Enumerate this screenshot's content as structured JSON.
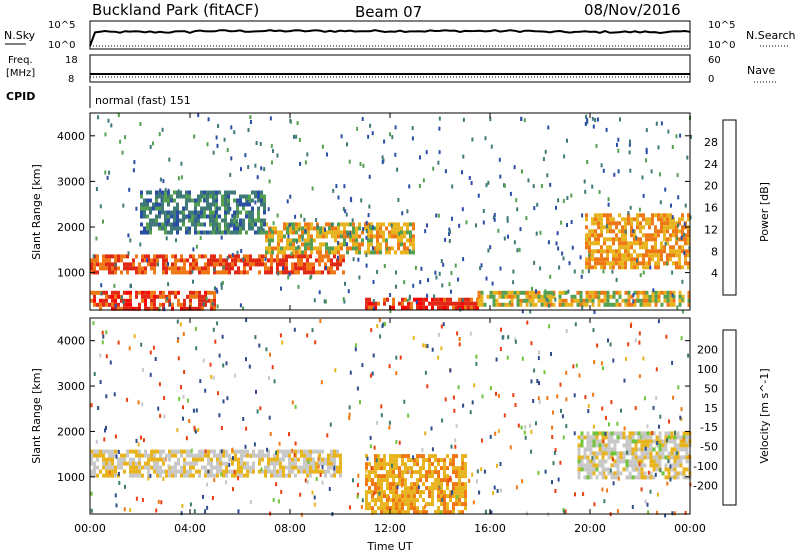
{
  "header": {
    "station": "Buckland Park (fitACF)",
    "beam": "Beam 07",
    "date": "08/Nov/2016"
  },
  "top_panels": {
    "nsky_label": "N.Sky",
    "nsky_scale_high": "10^5",
    "nsky_scale_low": "10^0",
    "nsearch_label": "N.Search",
    "nsearch_scale_high": "10^5",
    "nsearch_scale_low": "10^0",
    "freq_label_line1": "Freq.",
    "freq_label_line2": "[MHz]",
    "freq_high": "18",
    "freq_low": "8",
    "nave_label": "Nave",
    "nave_high": "60",
    "nave_low": "0",
    "cpid_label": "CPID",
    "cpid_value": "normal (fast) 151"
  },
  "axes": {
    "ylabel": "Slant Range [km]",
    "yticks": [
      "1000",
      "2000",
      "3000",
      "4000"
    ],
    "xlabel": "Time UT",
    "xticks": [
      "00:00",
      "04:00",
      "08:00",
      "12:00",
      "16:00",
      "20:00",
      "00:00"
    ]
  },
  "colorbars": {
    "power": {
      "label": "Power [dB]",
      "ticks": [
        "4",
        "8",
        "12",
        "16",
        "20",
        "24",
        "28"
      ],
      "colors": [
        "#0a1ee0",
        "#2a4da6",
        "#3f7a78",
        "#55a050",
        "#e8b41e",
        "#f07814",
        "#e02814",
        "#ff0000"
      ]
    },
    "velocity": {
      "label": "Velocity [m s^-1]",
      "ticks": [
        "200",
        "100",
        "50",
        "15",
        "-15",
        "-50",
        "-100",
        "-200"
      ],
      "colors": [
        "#1a2fa8",
        "#2e4d8a",
        "#3d7b6e",
        "#6fc43a",
        "#c8c8c8",
        "#e8b41e",
        "#f07814",
        "#e84010",
        "#e00000"
      ]
    }
  },
  "chart_data": [
    {
      "type": "heatmap",
      "panel": "power",
      "xlabel": "Time UT",
      "ylabel": "Slant Range [km]",
      "x_range_hours": [
        0,
        24
      ],
      "y_range_km": [
        180,
        4500
      ],
      "colorbar": "Power [dB]",
      "features": [
        {
          "from_hour": 0.0,
          "to_hour": 10.2,
          "range_km": [
            1000,
            1400
          ],
          "power_db": 24
        },
        {
          "from_hour": 7.0,
          "to_hour": 13.0,
          "range_km": [
            1400,
            2100
          ],
          "power_db": 18
        },
        {
          "from_hour": 2.0,
          "to_hour": 7.0,
          "range_km": [
            1900,
            2800
          ],
          "power_db": 10
        },
        {
          "from_hour": 0.0,
          "to_hour": 5.0,
          "range_km": [
            200,
            600
          ],
          "power_db": 25
        },
        {
          "from_hour": 11.0,
          "to_hour": 15.5,
          "range_km": [
            200,
            450
          ],
          "power_db": 26
        },
        {
          "from_hour": 19.8,
          "to_hour": 24.0,
          "range_km": [
            1100,
            2300
          ],
          "power_db": 20
        },
        {
          "from_hour": 15.5,
          "to_hour": 24.0,
          "range_km": [
            300,
            600
          ],
          "power_db": 18
        }
      ]
    },
    {
      "type": "heatmap",
      "panel": "velocity",
      "xlabel": "Time UT",
      "ylabel": "Slant Range [km]",
      "x_range_hours": [
        0,
        24
      ],
      "y_range_km": [
        180,
        4500
      ],
      "colorbar": "Velocity [m s^-1]",
      "features": [
        {
          "from_hour": 0.0,
          "to_hour": 10.0,
          "range_km": [
            1000,
            1600
          ],
          "velocity_ms": -10
        },
        {
          "from_hour": 11.0,
          "to_hour": 15.0,
          "range_km": [
            200,
            1500
          ],
          "velocity_ms": -40
        },
        {
          "from_hour": 19.5,
          "to_hour": 24.0,
          "range_km": [
            1000,
            2000
          ],
          "velocity_ms": -5
        }
      ]
    }
  ]
}
